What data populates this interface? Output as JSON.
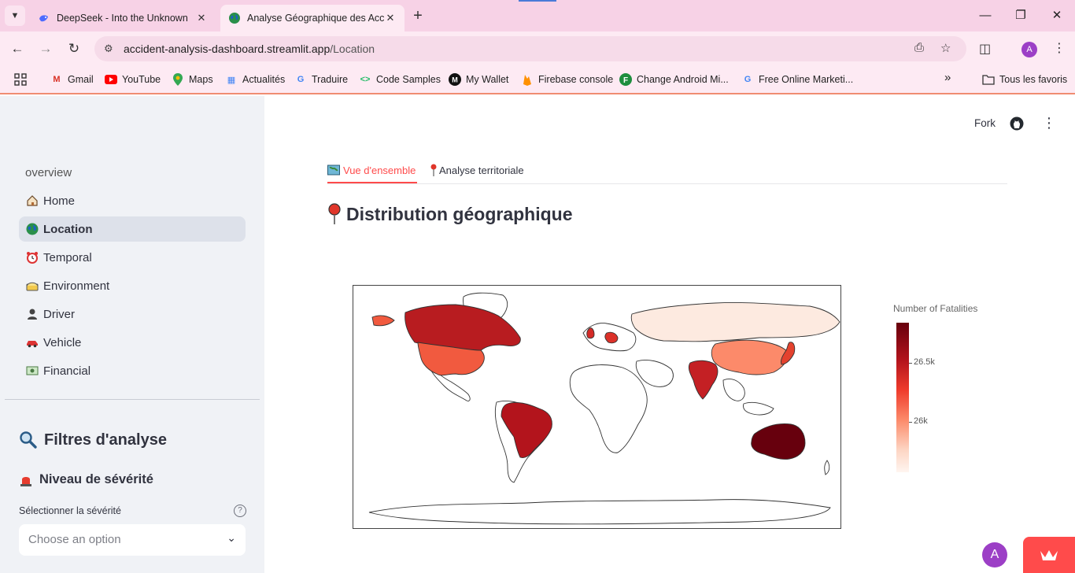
{
  "browser": {
    "tabs": [
      {
        "title": "DeepSeek - Into the Unknown",
        "favicon": "deepseek-whale-icon"
      },
      {
        "title": "Analyse Géographique des Acc",
        "favicon": "globe-icon"
      }
    ],
    "url_host": "accident-analysis-dashboard.streamlit.app",
    "url_path": "/Location",
    "profile_initial": "A",
    "bookmarks": [
      {
        "label": "Gmail"
      },
      {
        "label": "YouTube"
      },
      {
        "label": "Maps"
      },
      {
        "label": "Actualités"
      },
      {
        "label": "Traduire"
      },
      {
        "label": "Code Samples"
      },
      {
        "label": "My Wallet"
      },
      {
        "label": "Firebase console"
      },
      {
        "label": "Change Android Mi..."
      },
      {
        "label": "Free Online Marketi..."
      }
    ],
    "bookmarks_overflow": "»",
    "all_bookmarks": "Tous les favoris"
  },
  "sidebar": {
    "section": "overview",
    "nav": [
      {
        "label": "Home",
        "icon": "house-icon"
      },
      {
        "label": "Location",
        "icon": "globe-icon",
        "active": true
      },
      {
        "label": "Temporal",
        "icon": "alarm-clock-icon"
      },
      {
        "label": "Environment",
        "icon": "sun-cloud-icon"
      },
      {
        "label": "Driver",
        "icon": "person-icon"
      },
      {
        "label": "Vehicle",
        "icon": "car-icon"
      },
      {
        "label": "Financial",
        "icon": "money-icon"
      }
    ],
    "filters_title": "Filtres d'analyse",
    "severity_title": "Niveau de sévérité",
    "severity_label": "Sélectionner la sévérité",
    "severity_placeholder": "Choose an option"
  },
  "header": {
    "fork": "Fork"
  },
  "main": {
    "tabs": [
      {
        "label": "Vue d'ensemble",
        "icon": "map-icon",
        "selected": true
      },
      {
        "label": "Analyse territoriale",
        "icon": "pin-icon",
        "selected": false
      }
    ],
    "title": "Distribution géographique",
    "title_icon": "pin-icon"
  },
  "chart_data": {
    "type": "choropleth",
    "title": "",
    "colorbar_title": "Number of Fatalities",
    "colorscale": "Reds",
    "colorbar_ticks": [
      "26.5k",
      "26k"
    ],
    "countries": [
      {
        "name": "Australia",
        "value": 26900,
        "color": "#67000d"
      },
      {
        "name": "Brazil",
        "value": 26600,
        "color": "#b3141c"
      },
      {
        "name": "Canada",
        "value": 26600,
        "color": "#b81c20"
      },
      {
        "name": "India",
        "value": 26550,
        "color": "#c42024"
      },
      {
        "name": "United Kingdom",
        "value": 26500,
        "color": "#d42a27"
      },
      {
        "name": "Germany",
        "value": 26450,
        "color": "#dc3129"
      },
      {
        "name": "Japan",
        "value": 26400,
        "color": "#e4422e"
      },
      {
        "name": "United States",
        "value": 26200,
        "color": "#f15a3f"
      },
      {
        "name": "China",
        "value": 26050,
        "color": "#fc8a6a"
      },
      {
        "name": "Russia",
        "value": 25750,
        "color": "#fdeae0"
      }
    ]
  },
  "colors": {
    "accent": "#ff4b4b",
    "sidebar_bg": "#f0f2f6",
    "text": "#31333f"
  }
}
